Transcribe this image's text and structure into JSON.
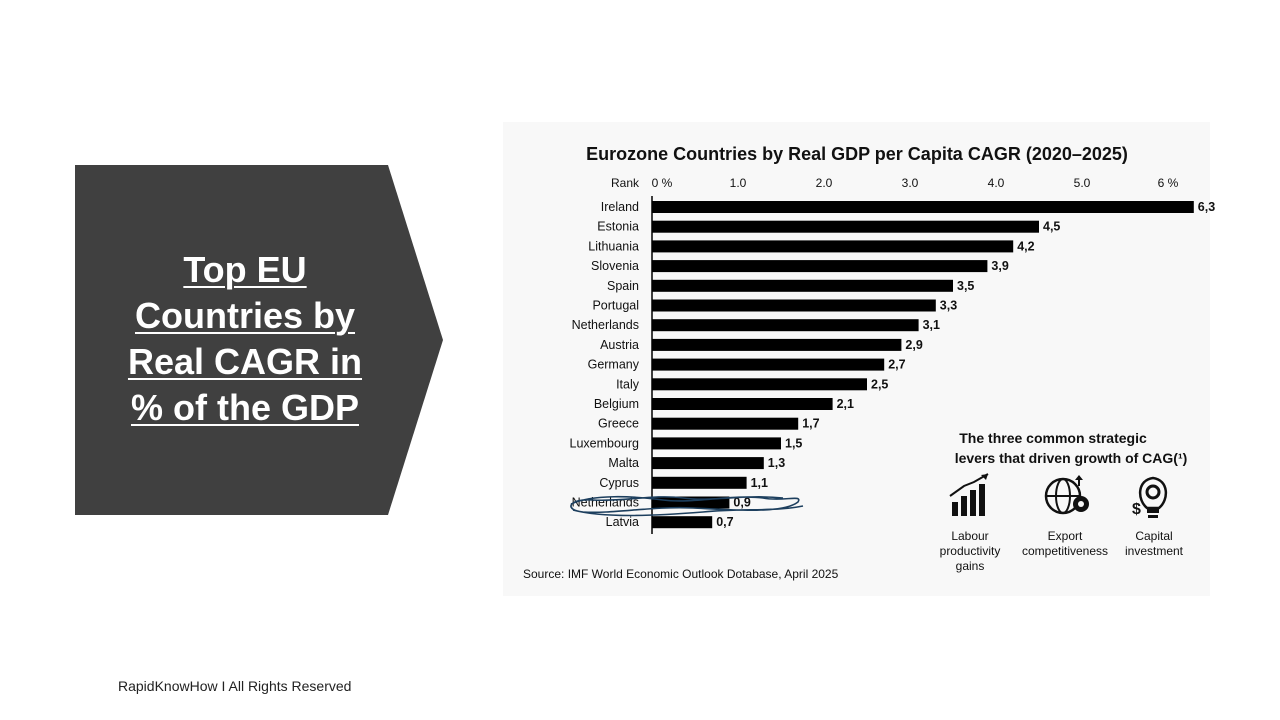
{
  "slide": {
    "title": "Top EU\nCountries by\nReal CAGR in\n% of the GDP",
    "footer": "RapidKnowHow I All Rights Reserved",
    "banner_color": "#404040"
  },
  "chart_data": {
    "type": "bar",
    "orientation": "horizontal",
    "title": "Eurozone Countries by Real GDP per Capita CAGR (2020–2025)",
    "rank_label": "Rank",
    "xlim": [
      0,
      6
    ],
    "ticks": [
      "0 %",
      "1.0",
      "2.0",
      "3.0",
      "4.0",
      "5.0",
      "6 %"
    ],
    "categories": [
      "Ireland",
      "Estonia",
      "Lithuania",
      "Slovenia",
      "Spain",
      "Portugal",
      "Netherlands",
      "Austria",
      "Germany",
      "Italy",
      "Belgium",
      "Greece",
      "Luxembourg",
      "Malta",
      "Cyprus",
      "Netherlands",
      "Latvia"
    ],
    "values": [
      6.3,
      4.5,
      4.2,
      3.9,
      3.5,
      3.3,
      3.1,
      2.9,
      2.7,
      2.5,
      2.1,
      1.7,
      1.5,
      1.3,
      1.1,
      0.9,
      0.7
    ],
    "value_labels": [
      "6,3",
      "4,5",
      "4,2",
      "3,9",
      "3,5",
      "3,3",
      "3,1",
      "2,9",
      "2,7",
      "2,5",
      "2,1",
      "1,7",
      "1,5",
      "1,3",
      "1,1",
      "0,9",
      "0,7"
    ],
    "scribbled_index": 15,
    "bar_color": "#000000",
    "source": "Source: IMF World Economic Outlook Dotabase, April 2025",
    "levers": {
      "heading_line1": "The three common strategic",
      "heading_line2": "levers that driven growth of CAG(¹)",
      "items": [
        {
          "icon": "bar-chart-growth-icon",
          "lines": [
            "Labour",
            "productivity",
            "gains"
          ]
        },
        {
          "icon": "globe-gear-icon",
          "lines": [
            "Export",
            "competitiveness"
          ]
        },
        {
          "icon": "lightbulb-gear-icon",
          "lines": [
            "Capital",
            "investment"
          ]
        }
      ]
    }
  }
}
